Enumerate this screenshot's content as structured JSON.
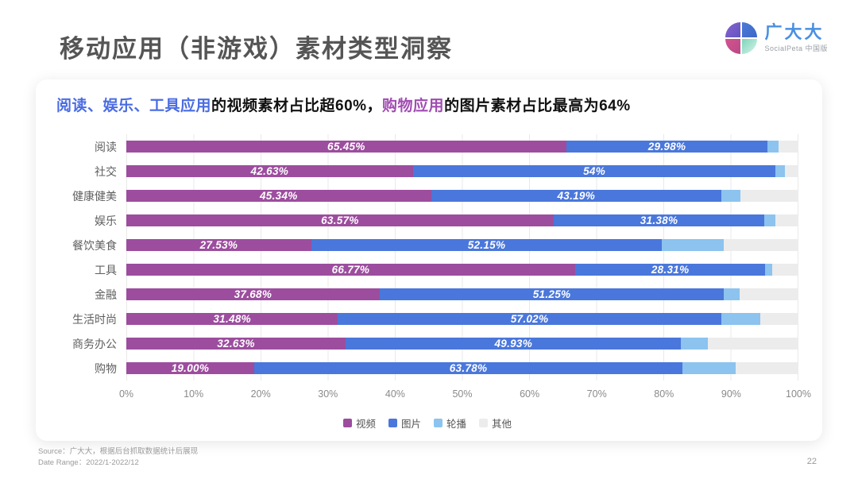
{
  "page": {
    "title": "移动应用（非游戏）素材类型洞察",
    "page_number": "22"
  },
  "logo": {
    "brand": "广大大",
    "sub": "SocialPeta 中国版"
  },
  "headline": {
    "part1": "阅读、娱乐、工具应用",
    "part2": "的视频素材占比超60%，",
    "part3": "购物应用",
    "part4": "的图片素材占比最高为64%",
    "highlight1_color": "#4a6ce3",
    "highlight2_color": "#a14cb2"
  },
  "chart_data": {
    "type": "bar",
    "orientation": "horizontal",
    "stacked": true,
    "grid": true,
    "legend_position": "bottom",
    "xlim": [
      0,
      100
    ],
    "x_ticks": [
      "0%",
      "10%",
      "20%",
      "30%",
      "40%",
      "50%",
      "60%",
      "70%",
      "80%",
      "90%",
      "100%"
    ],
    "categories": [
      "阅读",
      "社交",
      "健康健美",
      "娱乐",
      "餐饮美食",
      "工具",
      "金融",
      "生活时尚",
      "商务办公",
      "购物"
    ],
    "series": [
      {
        "name": "视频",
        "color": "#9c4d9e",
        "values": [
          65.45,
          42.63,
          45.34,
          63.57,
          27.53,
          66.77,
          37.68,
          31.48,
          32.63,
          19.0
        ],
        "labels": [
          "65.45%",
          "42.63%",
          "45.34%",
          "63.57%",
          "27.53%",
          "66.77%",
          "37.68%",
          "31.48%",
          "32.63%",
          "19.00%"
        ]
      },
      {
        "name": "图片",
        "color": "#4a77db",
        "values": [
          29.98,
          54,
          43.19,
          31.38,
          52.15,
          28.31,
          51.25,
          57.02,
          49.93,
          63.78
        ],
        "labels": [
          "29.98%",
          "54%",
          "43.19%",
          "31.38%",
          "52.15%",
          "28.31%",
          "51.25%",
          "57.02%",
          "49.93%",
          "63.78%"
        ]
      },
      {
        "name": "轮播",
        "color": "#8cc3ef",
        "values": [
          1.6,
          1.4,
          2.9,
          1.6,
          9.2,
          1.0,
          2.3,
          5.8,
          4.0,
          7.9
        ],
        "labels": [
          "",
          "",
          "",
          "",
          "",
          "",
          "",
          "",
          "",
          ""
        ]
      },
      {
        "name": "其他",
        "color": "#ececec",
        "values": [
          2.97,
          1.97,
          8.57,
          3.45,
          11.12,
          3.92,
          8.77,
          5.7,
          13.44,
          9.32
        ],
        "labels": [
          "",
          "",
          "",
          "",
          "",
          "",
          "",
          "",
          "",
          ""
        ]
      }
    ]
  },
  "footer": {
    "source": "Source：广大大，根据后台抓取数据统计后展现",
    "date_range": "Date Range：2022/1-2022/12"
  }
}
